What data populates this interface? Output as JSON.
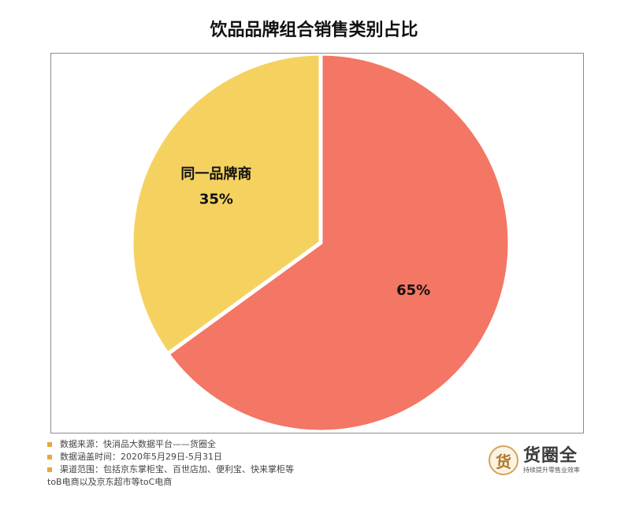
{
  "chart_data": {
    "type": "pie",
    "title": "饮品品牌组合销售类别占比",
    "slices": [
      {
        "name": "同一品牌商",
        "value": 35,
        "label": "35%",
        "color": "#f5d260"
      },
      {
        "name": "",
        "value": 65,
        "label": "65%",
        "color": "#f47664"
      }
    ],
    "start_angle_deg": 0,
    "direction": "clockwise",
    "legend": "none"
  },
  "notes": {
    "source": "数据来源：快消品大数据平台——货圈全",
    "period": "数据涵盖时间：2020年5月29日-5月31日",
    "channels": "渠道范围：包括京东掌柜宝、百世店加、便利宝、快来掌柜等",
    "channels_cont": "toB电商以及京东超市等toC电商",
    "bullet_color": "#e6a93b"
  },
  "logo": {
    "mark": "货",
    "name": "货圈全",
    "slogan": "持续提升零售业效率",
    "icon": "brand-logo-icon"
  }
}
